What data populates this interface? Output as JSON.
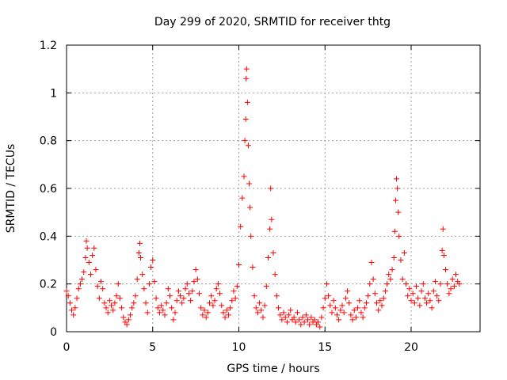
{
  "chart_data": {
    "type": "scatter",
    "title": "Day 299 of 2020, SRMTID for receiver thtg",
    "xlabel": "GPS time / hours",
    "ylabel": "SRMTID / TECUs",
    "xlim": [
      0,
      24
    ],
    "ylim": [
      0,
      1.2
    ],
    "xticks": [
      0,
      5,
      10,
      15,
      20
    ],
    "xtick_labels": [
      "0",
      "5",
      "10",
      "15",
      "20"
    ],
    "yticks": [
      0,
      0.2,
      0.4,
      0.6,
      0.8,
      1.0,
      1.2
    ],
    "ytick_labels": [
      "0",
      "0.2",
      "0.4",
      "0.6",
      "0.8",
      "1",
      "1.2"
    ],
    "grid": true,
    "marker": "+",
    "series_color": "#ff0000",
    "series": [
      {
        "name": "SRMTID",
        "points": [
          [
            0.0,
            0.17
          ],
          [
            0.1,
            0.15
          ],
          [
            0.2,
            0.12
          ],
          [
            0.3,
            0.09
          ],
          [
            0.4,
            0.07
          ],
          [
            0.5,
            0.1
          ],
          [
            0.6,
            0.14
          ],
          [
            0.7,
            0.18
          ],
          [
            0.8,
            0.2
          ],
          [
            0.9,
            0.22
          ],
          [
            1.0,
            0.25
          ],
          [
            1.1,
            0.31
          ],
          [
            1.15,
            0.38
          ],
          [
            1.2,
            0.35
          ],
          [
            1.3,
            0.29
          ],
          [
            1.4,
            0.24
          ],
          [
            1.5,
            0.32
          ],
          [
            1.6,
            0.35
          ],
          [
            1.7,
            0.26
          ],
          [
            1.8,
            0.19
          ],
          [
            1.9,
            0.14
          ],
          [
            2.0,
            0.21
          ],
          [
            2.1,
            0.18
          ],
          [
            2.2,
            0.12
          ],
          [
            2.3,
            0.1
          ],
          [
            2.4,
            0.08
          ],
          [
            2.5,
            0.13
          ],
          [
            2.6,
            0.11
          ],
          [
            2.7,
            0.09
          ],
          [
            2.8,
            0.12
          ],
          [
            2.9,
            0.15
          ],
          [
            3.0,
            0.2
          ],
          [
            3.1,
            0.14
          ],
          [
            3.2,
            0.1
          ],
          [
            3.3,
            0.06
          ],
          [
            3.4,
            0.04
          ],
          [
            3.5,
            0.03
          ],
          [
            3.6,
            0.05
          ],
          [
            3.7,
            0.07
          ],
          [
            3.8,
            0.1
          ],
          [
            3.9,
            0.12
          ],
          [
            4.0,
            0.15
          ],
          [
            4.1,
            0.22
          ],
          [
            4.2,
            0.33
          ],
          [
            4.25,
            0.37
          ],
          [
            4.3,
            0.31
          ],
          [
            4.4,
            0.24
          ],
          [
            4.5,
            0.18
          ],
          [
            4.6,
            0.12
          ],
          [
            4.7,
            0.08
          ],
          [
            4.8,
            0.2
          ],
          [
            4.9,
            0.27
          ],
          [
            5.0,
            0.3
          ],
          [
            5.1,
            0.21
          ],
          [
            5.2,
            0.14
          ],
          [
            5.3,
            0.1
          ],
          [
            5.4,
            0.08
          ],
          [
            5.5,
            0.11
          ],
          [
            5.6,
            0.09
          ],
          [
            5.7,
            0.07
          ],
          [
            5.8,
            0.12
          ],
          [
            5.9,
            0.18
          ],
          [
            6.0,
            0.15
          ],
          [
            6.1,
            0.1
          ],
          [
            6.2,
            0.05
          ],
          [
            6.3,
            0.08
          ],
          [
            6.4,
            0.13
          ],
          [
            6.5,
            0.17
          ],
          [
            6.6,
            0.15
          ],
          [
            6.7,
            0.12
          ],
          [
            6.8,
            0.14
          ],
          [
            6.9,
            0.18
          ],
          [
            7.0,
            0.2
          ],
          [
            7.1,
            0.16
          ],
          [
            7.2,
            0.13
          ],
          [
            7.3,
            0.17
          ],
          [
            7.4,
            0.21
          ],
          [
            7.5,
            0.26
          ],
          [
            7.6,
            0.22
          ],
          [
            7.7,
            0.16
          ],
          [
            7.8,
            0.1
          ],
          [
            7.9,
            0.07
          ],
          [
            8.0,
            0.09
          ],
          [
            8.1,
            0.06
          ],
          [
            8.2,
            0.08
          ],
          [
            8.3,
            0.12
          ],
          [
            8.4,
            0.15
          ],
          [
            8.5,
            0.11
          ],
          [
            8.6,
            0.13
          ],
          [
            8.7,
            0.18
          ],
          [
            8.8,
            0.2
          ],
          [
            8.9,
            0.16
          ],
          [
            9.0,
            0.11
          ],
          [
            9.1,
            0.08
          ],
          [
            9.2,
            0.06
          ],
          [
            9.3,
            0.09
          ],
          [
            9.4,
            0.07
          ],
          [
            9.5,
            0.1
          ],
          [
            9.6,
            0.13
          ],
          [
            9.7,
            0.17
          ],
          [
            9.8,
            0.14
          ],
          [
            9.9,
            0.19
          ],
          [
            10.0,
            0.28
          ],
          [
            10.1,
            0.44
          ],
          [
            10.2,
            0.56
          ],
          [
            10.3,
            0.65
          ],
          [
            10.35,
            0.8
          ],
          [
            10.4,
            0.89
          ],
          [
            10.42,
            1.06
          ],
          [
            10.45,
            1.1
          ],
          [
            10.5,
            0.96
          ],
          [
            10.55,
            0.78
          ],
          [
            10.6,
            0.62
          ],
          [
            10.65,
            0.52
          ],
          [
            10.7,
            0.4
          ],
          [
            10.8,
            0.27
          ],
          [
            10.9,
            0.15
          ],
          [
            11.0,
            0.1
          ],
          [
            11.1,
            0.08
          ],
          [
            11.2,
            0.12
          ],
          [
            11.3,
            0.09
          ],
          [
            11.4,
            0.06
          ],
          [
            11.5,
            0.11
          ],
          [
            11.6,
            0.19
          ],
          [
            11.7,
            0.31
          ],
          [
            11.8,
            0.43
          ],
          [
            11.85,
            0.6
          ],
          [
            11.9,
            0.47
          ],
          [
            12.0,
            0.33
          ],
          [
            12.1,
            0.24
          ],
          [
            12.2,
            0.15
          ],
          [
            12.3,
            0.1
          ],
          [
            12.4,
            0.07
          ],
          [
            12.5,
            0.05
          ],
          [
            12.6,
            0.08
          ],
          [
            12.7,
            0.06
          ],
          [
            12.8,
            0.04
          ],
          [
            12.9,
            0.07
          ],
          [
            13.0,
            0.09
          ],
          [
            13.1,
            0.05
          ],
          [
            13.2,
            0.06
          ],
          [
            13.3,
            0.04
          ],
          [
            13.4,
            0.08
          ],
          [
            13.5,
            0.05
          ],
          [
            13.6,
            0.03
          ],
          [
            13.7,
            0.06
          ],
          [
            13.8,
            0.04
          ],
          [
            13.9,
            0.07
          ],
          [
            14.0,
            0.05
          ],
          [
            14.1,
            0.03
          ],
          [
            14.2,
            0.06
          ],
          [
            14.3,
            0.04
          ],
          [
            14.4,
            0.05
          ],
          [
            14.5,
            0.03
          ],
          [
            14.6,
            0.04
          ],
          [
            14.7,
            0.02
          ],
          [
            14.8,
            0.06
          ],
          [
            14.9,
            0.1
          ],
          [
            15.0,
            0.14
          ],
          [
            15.1,
            0.2
          ],
          [
            15.2,
            0.15
          ],
          [
            15.3,
            0.11
          ],
          [
            15.4,
            0.08
          ],
          [
            15.5,
            0.13
          ],
          [
            15.6,
            0.1
          ],
          [
            15.7,
            0.07
          ],
          [
            15.8,
            0.05
          ],
          [
            15.9,
            0.09
          ],
          [
            16.0,
            0.11
          ],
          [
            16.1,
            0.08
          ],
          [
            16.2,
            0.14
          ],
          [
            16.3,
            0.17
          ],
          [
            16.4,
            0.12
          ],
          [
            16.5,
            0.07
          ],
          [
            16.6,
            0.05
          ],
          [
            16.7,
            0.09
          ],
          [
            16.8,
            0.06
          ],
          [
            16.9,
            0.1
          ],
          [
            17.0,
            0.13
          ],
          [
            17.1,
            0.08
          ],
          [
            17.2,
            0.06
          ],
          [
            17.3,
            0.1
          ],
          [
            17.4,
            0.12
          ],
          [
            17.5,
            0.15
          ],
          [
            17.6,
            0.2
          ],
          [
            17.7,
            0.29
          ],
          [
            17.8,
            0.22
          ],
          [
            17.9,
            0.16
          ],
          [
            18.0,
            0.12
          ],
          [
            18.1,
            0.09
          ],
          [
            18.2,
            0.13
          ],
          [
            18.3,
            0.11
          ],
          [
            18.4,
            0.14
          ],
          [
            18.5,
            0.17
          ],
          [
            18.6,
            0.2
          ],
          [
            18.7,
            0.24
          ],
          [
            18.8,
            0.22
          ],
          [
            18.9,
            0.26
          ],
          [
            19.0,
            0.31
          ],
          [
            19.05,
            0.42
          ],
          [
            19.1,
            0.55
          ],
          [
            19.15,
            0.64
          ],
          [
            19.2,
            0.6
          ],
          [
            19.25,
            0.5
          ],
          [
            19.3,
            0.4
          ],
          [
            19.4,
            0.3
          ],
          [
            19.5,
            0.22
          ],
          [
            19.6,
            0.33
          ],
          [
            19.7,
            0.2
          ],
          [
            19.8,
            0.15
          ],
          [
            19.9,
            0.18
          ],
          [
            20.0,
            0.13
          ],
          [
            20.1,
            0.16
          ],
          [
            20.2,
            0.12
          ],
          [
            20.3,
            0.19
          ],
          [
            20.4,
            0.14
          ],
          [
            20.5,
            0.11
          ],
          [
            20.6,
            0.17
          ],
          [
            20.7,
            0.2
          ],
          [
            20.8,
            0.14
          ],
          [
            20.9,
            0.12
          ],
          [
            21.0,
            0.16
          ],
          [
            21.1,
            0.13
          ],
          [
            21.2,
            0.1
          ],
          [
            21.3,
            0.17
          ],
          [
            21.4,
            0.21
          ],
          [
            21.5,
            0.15
          ],
          [
            21.6,
            0.13
          ],
          [
            21.7,
            0.2
          ],
          [
            21.8,
            0.34
          ],
          [
            21.85,
            0.43
          ],
          [
            21.9,
            0.32
          ],
          [
            22.0,
            0.26
          ],
          [
            22.1,
            0.2
          ],
          [
            22.2,
            0.16
          ],
          [
            22.3,
            0.18
          ],
          [
            22.4,
            0.22
          ],
          [
            22.5,
            0.19
          ],
          [
            22.6,
            0.24
          ],
          [
            22.7,
            0.21
          ],
          [
            22.8,
            0.2
          ]
        ]
      }
    ]
  }
}
